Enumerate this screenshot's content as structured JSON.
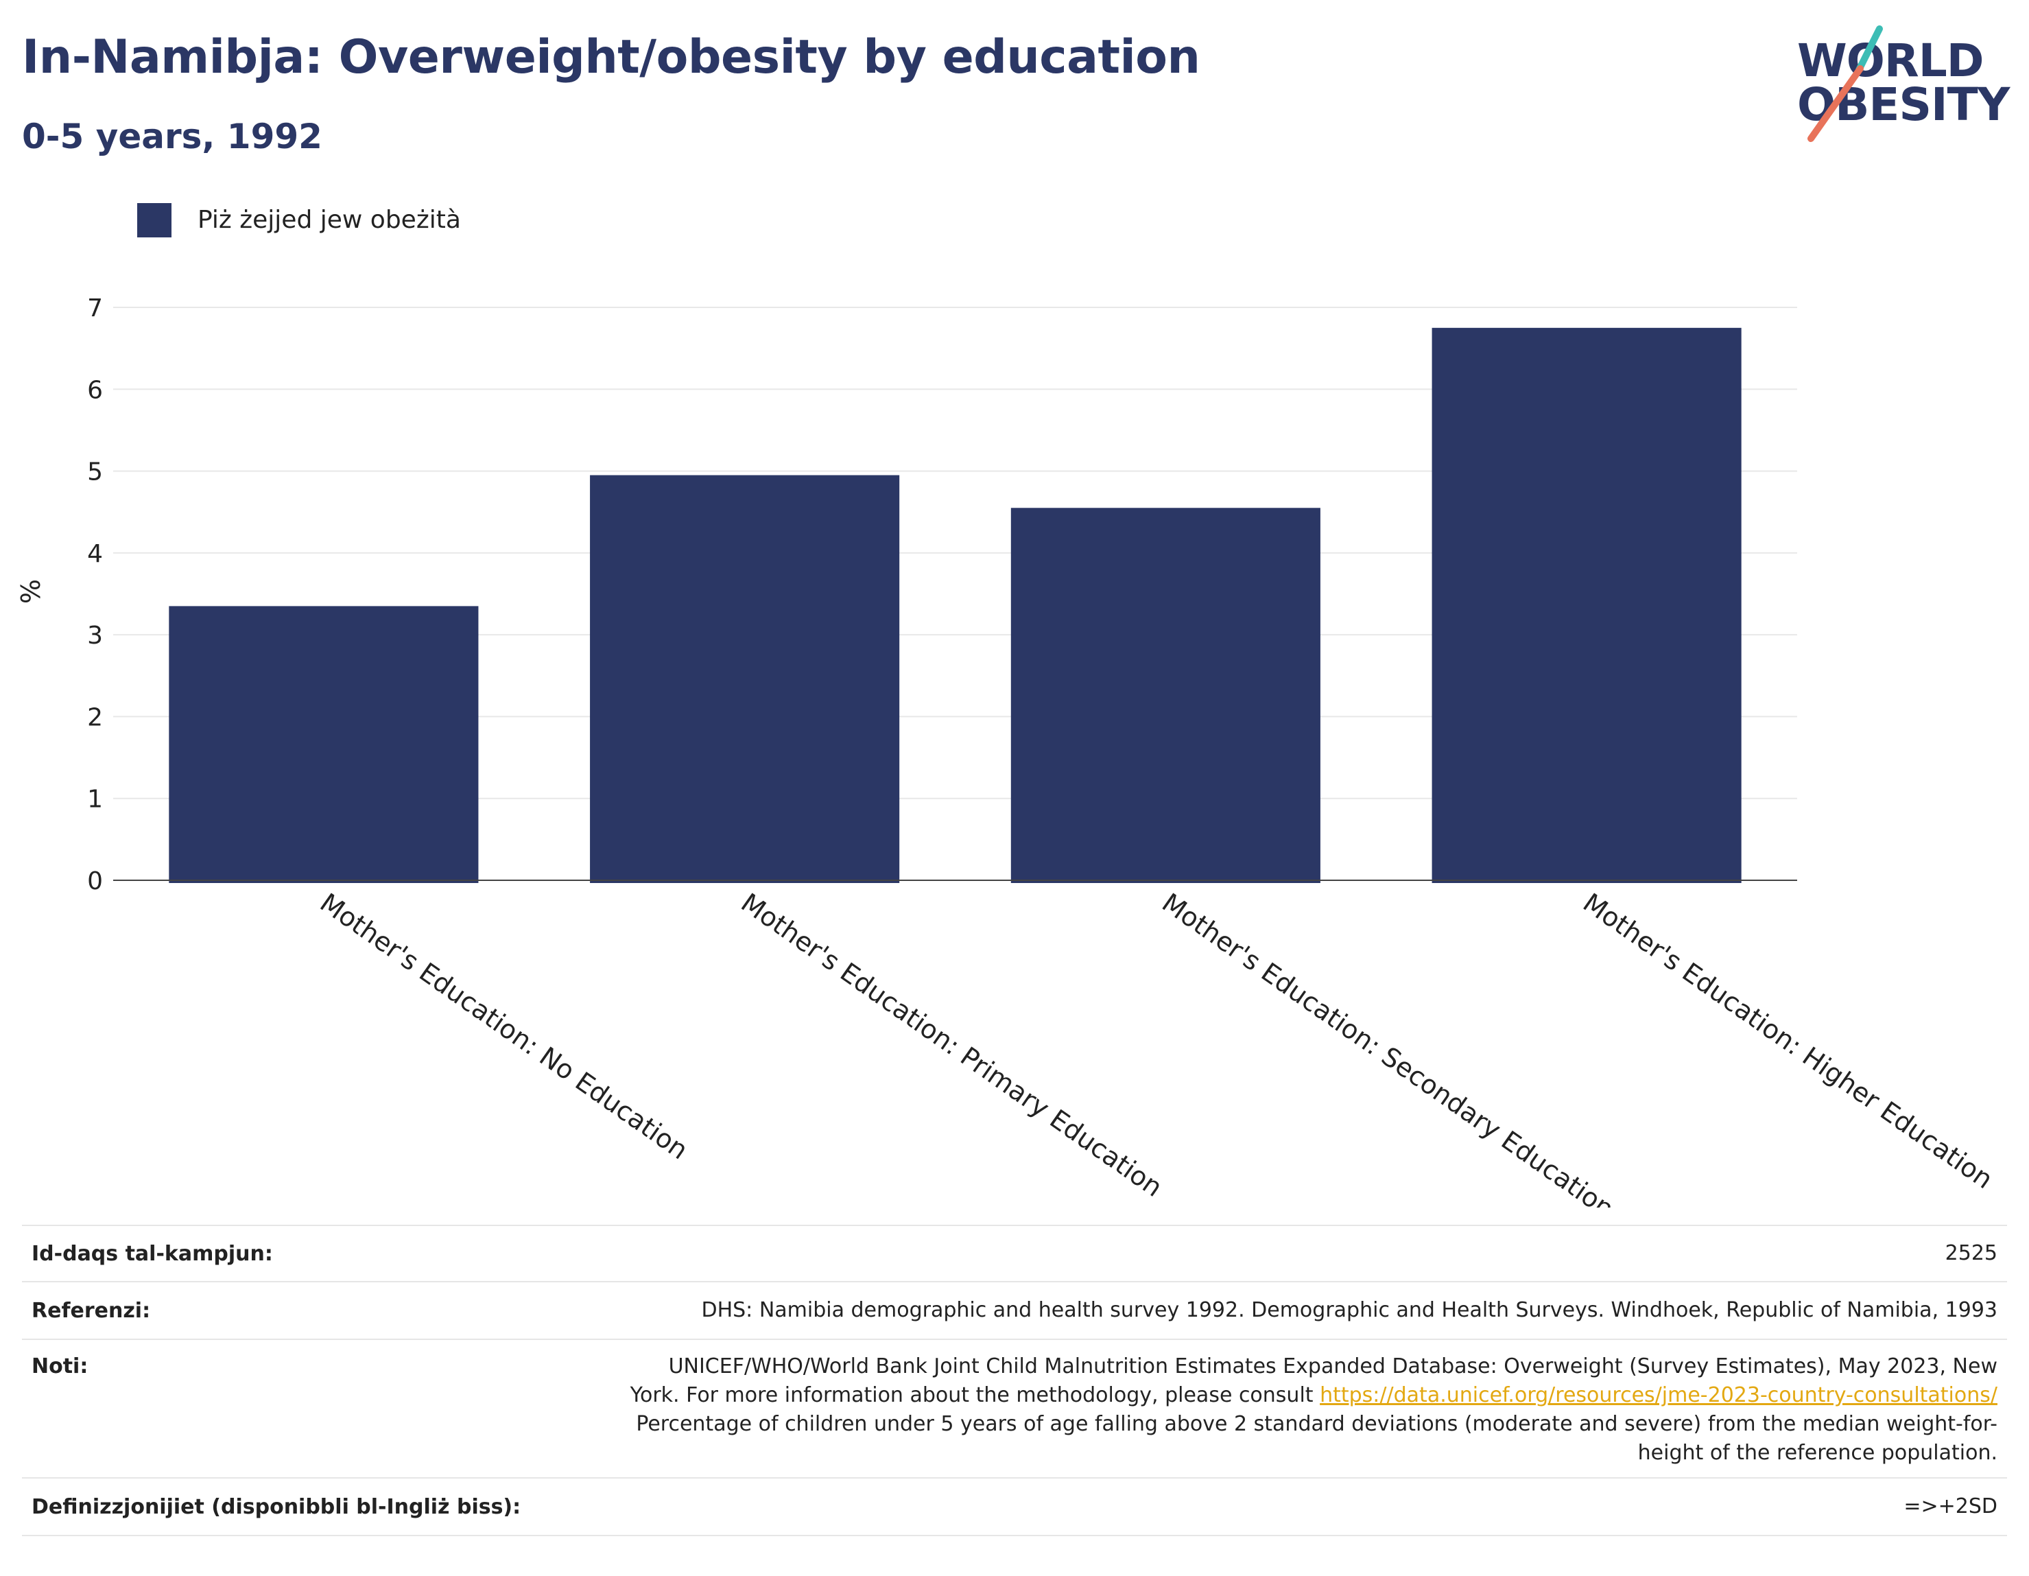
{
  "header": {
    "title": "In-Namibja: Overweight/obesity by education",
    "subtitle": "0-5 years, 1992"
  },
  "logo": {
    "line1": "WORLD",
    "line2": "OBESITY",
    "colors": {
      "text": "#2b3765",
      "slash_top": "#3dbdb5",
      "slash_bottom": "#e8735a"
    }
  },
  "legend": {
    "label": "Piż żejjed jew obeżità",
    "color": "#2b3765"
  },
  "chart_data": {
    "type": "bar",
    "categories": [
      "Mother's Education: No Education",
      "Mother's Education: Primary Education",
      "Mother's Education: Secondary Education",
      "Mother's Education: Higher Education"
    ],
    "series": [
      {
        "name": "Piż żejjed jew obeżità",
        "values": [
          3.35,
          4.95,
          4.55,
          6.75
        ]
      }
    ],
    "ylabel": "%",
    "ylim": [
      0,
      7
    ],
    "yticks": [
      "0",
      "1",
      "2",
      "3",
      "4",
      "5",
      "6",
      "7"
    ],
    "grid": true,
    "legend_position": "top-left",
    "bar_color": "#2b3765"
  },
  "footer": {
    "rows": [
      {
        "label": "Id-daqs tal-kampjun:",
        "value": "2525"
      },
      {
        "label": "Referenzi:",
        "value": "DHS: Namibia demographic and health survey 1992. Demographic and Health Surveys. Windhoek, Republic of Namibia, 1993"
      },
      {
        "label": "Noti:",
        "value_line1": "UNICEF/WHO/World Bank Joint Child Malnutrition Estimates Expanded Database: Overweight (Survey Estimates), May 2023, New",
        "value_line2_prefix": "York. For more information about the methodology, please consult ",
        "link": "https://data.unicef.org/resources/jme-2023-country-consultations/",
        "value_line3": "Percentage of children under 5 years of age falling above 2 standard deviations (moderate and severe) from the median weight-for-",
        "value_line4": "height of the reference population."
      },
      {
        "label": "Definizzjonijiet (disponibbli bl-Ingliż biss):",
        "value": "=>+2SD"
      }
    ]
  }
}
